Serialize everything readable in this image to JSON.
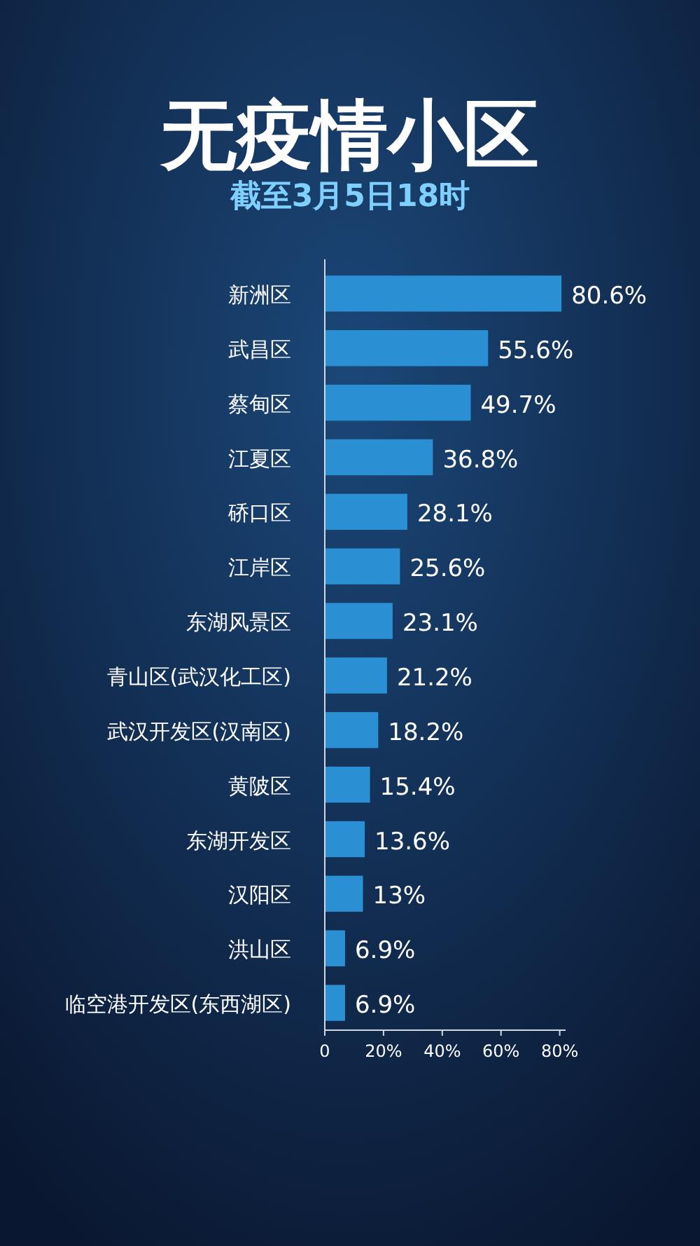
{
  "chart_data": {
    "type": "bar",
    "orientation": "horizontal",
    "title": "无疫情小区",
    "subtitle": "截至3月5日18时",
    "categories": [
      "新洲区",
      "武昌区",
      "蔡甸区",
      "江夏区",
      "硚口区",
      "江岸区",
      "东湖风景区",
      "青山区(武汉化工区)",
      "武汉开发区(汉南区)",
      "黄陂区",
      "东湖开发区",
      "汉阳区",
      "洪山区",
      "临空港开发区(东西湖区)"
    ],
    "values": [
      80.6,
      55.6,
      49.7,
      36.8,
      28.1,
      25.6,
      23.1,
      21.2,
      18.2,
      15.4,
      13.6,
      13,
      6.9,
      6.9
    ],
    "value_labels": [
      "80.6%",
      "55.6%",
      "49.7%",
      "36.8%",
      "28.1%",
      "25.6%",
      "23.1%",
      "21.2%",
      "18.2%",
      "15.4%",
      "13.6%",
      "13%",
      "6.9%",
      "6.9%"
    ],
    "color": "#2b8fd3",
    "xlim": [
      0,
      82
    ],
    "xticks": [
      0,
      {
        "value": 20,
        "label": "20%"
      },
      {
        "value": 40,
        "label": "40%"
      },
      {
        "value": 60,
        "label": "60%"
      },
      {
        "value": 80,
        "label": "80%"
      }
    ],
    "grid": false
  }
}
